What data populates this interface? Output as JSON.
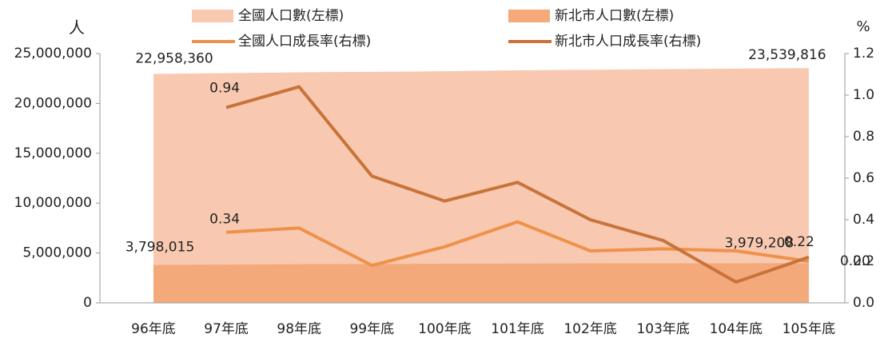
{
  "chart_data": {
    "type": "area-line",
    "y_label": "人",
    "y2_label": "%",
    "categories": [
      "96年底",
      "97年底",
      "98年底",
      "99年底",
      "100年底",
      "101年底",
      "102年底",
      "103年底",
      "104年底",
      "105年底"
    ],
    "ylim": [
      0,
      25000000
    ],
    "yticks": [
      0,
      {
        "value": 5000000,
        "label": "5,000,000"
      },
      {
        "value": 10000000,
        "label": "10,000,000"
      },
      {
        "value": 15000000,
        "label": "15,000,000"
      },
      {
        "value": 20000000,
        "label": "20,000,000"
      },
      {
        "value": 25000000,
        "label": "25,000,000"
      }
    ],
    "y2lim": [
      0,
      1.2
    ],
    "y2ticks": [
      {
        "value": 0,
        "label": "0.0"
      },
      0.2,
      0.4,
      0.6,
      0.8,
      {
        "value": 1,
        "label": "1.0"
      },
      1.2
    ],
    "series": [
      {
        "name": "全國人口數(左標)",
        "kind": "area",
        "color": "#f8c9b0",
        "values": [
          22958360,
          23037031,
          23119772,
          23162123,
          23224912,
          23315822,
          23373517,
          23433753,
          23492074,
          23539816
        ],
        "value_labels": [
          "22,958,360",
          null,
          null,
          null,
          null,
          null,
          null,
          null,
          null,
          "23,539,816"
        ]
      },
      {
        "name": "新北市人口數(左標)",
        "kind": "area",
        "color": "#f4a97a",
        "values": [
          3798015,
          3833730,
          3873653,
          3897367,
          3916451,
          3939305,
          3954929,
          3966818,
          3970644,
          3979208
        ],
        "value_labels": [
          "3,798,015",
          null,
          null,
          null,
          null,
          null,
          null,
          null,
          null,
          "3,979,208"
        ]
      },
      {
        "name": "全國人口成長率(右標)",
        "kind": "line",
        "axis": "y2",
        "color": "#ee914a",
        "values": [
          null,
          0.34,
          0.36,
          0.18,
          0.27,
          0.39,
          0.25,
          0.26,
          0.25,
          0.2
        ],
        "value_labels": [
          null,
          "0.34",
          null,
          null,
          null,
          null,
          null,
          null,
          null,
          "0.20"
        ]
      },
      {
        "name": "新北市人口成長率(右標)",
        "kind": "line",
        "axis": "y2",
        "color": "#c8733a",
        "values": [
          null,
          0.94,
          1.04,
          0.61,
          0.49,
          0.58,
          0.4,
          0.3,
          0.1,
          0.22
        ],
        "value_labels": [
          null,
          "0.94",
          null,
          null,
          null,
          null,
          null,
          null,
          null,
          "0.22"
        ]
      }
    ]
  }
}
